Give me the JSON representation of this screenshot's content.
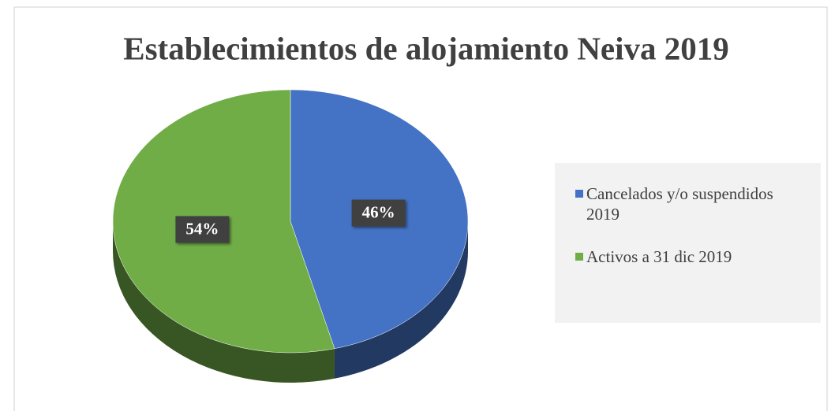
{
  "chart_data": {
    "type": "pie",
    "title": "Establecimientos de alojamiento Neiva 2019",
    "categories": [
      "Cancelados y/o suspendidos 2019",
      "Activos a 31 dic 2019"
    ],
    "values": [
      46,
      54
    ],
    "value_labels": [
      "46%",
      "54%"
    ],
    "colors": [
      "#4472c4",
      "#70ad47"
    ],
    "legend": "right"
  }
}
